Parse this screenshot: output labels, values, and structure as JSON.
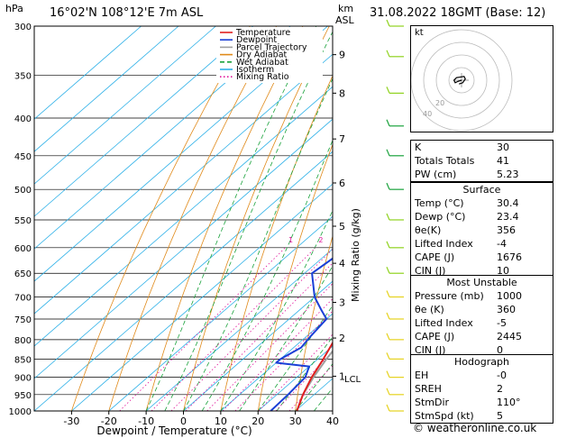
{
  "header": {
    "location": "16°02'N 108°12'E 7m ASL",
    "datetime": "31.08.2022 18GMT (Base: 12)",
    "left_unit": "hPa",
    "right_unit_top": "km",
    "right_unit_bottom": "ASL"
  },
  "chart_data": {
    "type": "skew-t",
    "xlabel": "Dewpoint / Temperature (°C)",
    "ylabel_right": "Mixing Ratio (g/kg)",
    "pressure_levels": [
      300,
      350,
      400,
      450,
      500,
      550,
      600,
      650,
      700,
      750,
      800,
      850,
      900,
      950,
      1000
    ],
    "x_ticks": [
      -30,
      -20,
      -10,
      0,
      10,
      20,
      30,
      40
    ],
    "xlim": [
      -40,
      40
    ],
    "ylim_hpa": [
      1000,
      300
    ],
    "km_ticks": [
      {
        "label": "9",
        "p": 328
      },
      {
        "label": "8",
        "p": 370
      },
      {
        "label": "7",
        "p": 427
      },
      {
        "label": "6",
        "p": 490
      },
      {
        "label": "5",
        "p": 561
      },
      {
        "label": "4",
        "p": 630
      },
      {
        "label": "3",
        "p": 712
      },
      {
        "label": "2",
        "p": 796
      },
      {
        "label": "1",
        "p": 897
      }
    ],
    "lcl": {
      "label": "LCL",
      "p": 903
    },
    "mixing_ratio_labels": [
      "1",
      "2",
      "3",
      "4",
      "6",
      "8",
      "10",
      "15",
      "20",
      "25"
    ],
    "mixing_ratio_values": [
      1,
      2,
      3,
      4,
      6,
      8,
      10,
      15,
      20,
      25
    ],
    "mixing_ratio_label_p": 590,
    "legend": [
      "Temperature",
      "Dewpoint",
      "Parcel Trajectory",
      "Dry Adiabat",
      "Wet Adiabat",
      "Isotherm",
      "Mixing Ratio"
    ],
    "series": [
      {
        "name": "Temperature",
        "points": [
          [
            1000,
            30.4
          ],
          [
            950,
            27
          ],
          [
            900,
            24
          ],
          [
            850,
            21.5
          ],
          [
            800,
            18.5
          ],
          [
            750,
            16
          ],
          [
            700,
            13
          ],
          [
            650,
            10
          ],
          [
            600,
            7.5
          ],
          [
            550,
            3.5
          ],
          [
            500,
            -1.5
          ],
          [
            450,
            -6.5
          ],
          [
            400,
            -13
          ],
          [
            350,
            -20
          ],
          [
            300,
            -27
          ]
        ]
      },
      {
        "name": "Dewpoint",
        "points": [
          [
            1000,
            23.4
          ],
          [
            950,
            23
          ],
          [
            900,
            22.3
          ],
          [
            870,
            20
          ],
          [
            860,
            10
          ],
          [
            850,
            10
          ],
          [
            820,
            12
          ],
          [
            790,
            11
          ],
          [
            750,
            10
          ],
          [
            730,
            6
          ],
          [
            700,
            0
          ],
          [
            650,
            -8
          ],
          [
            620,
            -7
          ],
          [
            600,
            -3
          ],
          [
            580,
            -7
          ],
          [
            550,
            -12
          ],
          [
            520,
            -10
          ],
          [
            510,
            -16
          ],
          [
            500,
            -16
          ],
          [
            460,
            -27
          ],
          [
            430,
            -30
          ],
          [
            410,
            -35
          ],
          [
            380,
            -38
          ],
          [
            355,
            -42
          ],
          [
            320,
            -37
          ],
          [
            300,
            -39
          ]
        ]
      },
      {
        "name": "Parcel Trajectory",
        "points": [
          [
            1000,
            30.4
          ],
          [
            950,
            27
          ],
          [
            900,
            24.5
          ],
          [
            850,
            22.3
          ],
          [
            800,
            20.5
          ],
          [
            750,
            18.3
          ],
          [
            700,
            15.8
          ],
          [
            650,
            13.3
          ],
          [
            600,
            10.5
          ],
          [
            550,
            7.3
          ],
          [
            500,
            3.5
          ],
          [
            450,
            -1
          ],
          [
            400,
            -6.5
          ],
          [
            350,
            -13
          ],
          [
            300,
            -21
          ]
        ]
      }
    ],
    "wind_barb_pressures": [
      300,
      330,
      370,
      410,
      450,
      500,
      550,
      600,
      650,
      700,
      750,
      800,
      850,
      900,
      950,
      1000
    ]
  },
  "indices": {
    "rows": [
      {
        "label": "K",
        "value": "30"
      },
      {
        "label": "Totals Totals",
        "value": "41"
      },
      {
        "label": "PW (cm)",
        "value": "5.23"
      }
    ]
  },
  "surface": {
    "title": "Surface",
    "rows": [
      {
        "label": "Temp (°C)",
        "value": "30.4"
      },
      {
        "label": "Dewp (°C)",
        "value": "23.4"
      },
      {
        "label": "θe(K)",
        "value": "356"
      },
      {
        "label": "Lifted Index",
        "value": "-4"
      },
      {
        "label": "CAPE (J)",
        "value": "1676"
      },
      {
        "label": "CIN (J)",
        "value": "10"
      }
    ]
  },
  "unstable": {
    "title": "Most Unstable",
    "rows": [
      {
        "label": "Pressure (mb)",
        "value": "1000"
      },
      {
        "label": "θe (K)",
        "value": "360"
      },
      {
        "label": "Lifted Index",
        "value": "-5"
      },
      {
        "label": "CAPE (J)",
        "value": "2445"
      },
      {
        "label": "CIN (J)",
        "value": "0"
      }
    ]
  },
  "hodograph": {
    "title": "Hodograph",
    "rows": [
      {
        "label": "EH",
        "value": "-0"
      },
      {
        "label": "SREH",
        "value": "2"
      },
      {
        "label": "StmDir",
        "value": "110°"
      },
      {
        "label": "StmSpd (kt)",
        "value": "5"
      }
    ]
  },
  "hodo_box": {
    "label": "kt",
    "ring_labels": [
      "20",
      "40"
    ],
    "trace": [
      [
        0,
        0
      ],
      [
        -3,
        1
      ],
      [
        -5,
        2
      ],
      [
        -6,
        0
      ],
      [
        -4,
        -2
      ],
      [
        2,
        -3
      ],
      [
        3,
        -1
      ],
      [
        1,
        2
      ],
      [
        -2,
        3
      ]
    ]
  },
  "credit": "© weatheronline.co.uk",
  "colors": {
    "temperature": "#e02020",
    "dewpoint": "#1a3fd6",
    "parcel": "#a0a0a0",
    "dry_adiabat": "#e08a1a",
    "wet_adiabat": "#1aa23c",
    "isotherm": "#2fb1e8",
    "mixing_ratio": "#e0149a"
  }
}
